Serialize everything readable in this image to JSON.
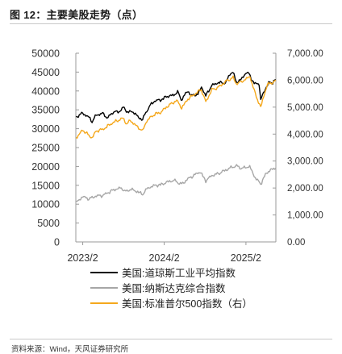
{
  "figure": {
    "title": "图 12：主要美股走势（点）",
    "source": "资料来源：Wind，天风证券研究所"
  },
  "chart_data": {
    "type": "line",
    "x_range": [
      "2023-01-01",
      "2025-06-15"
    ],
    "x_ticks": [
      {
        "date": "2023-02-01",
        "label": "2023/2"
      },
      {
        "date": "2024-02-01",
        "label": "2024/2"
      },
      {
        "date": "2025-02-01",
        "label": "2025/2"
      }
    ],
    "y_left": {
      "range": [
        0,
        50000
      ],
      "ticks": [
        0,
        5000,
        10000,
        15000,
        20000,
        25000,
        30000,
        35000,
        40000,
        45000,
        50000
      ],
      "tick_labels": [
        "0",
        "5000",
        "10000",
        "15000",
        "20000",
        "25000",
        "30000",
        "35000",
        "40000",
        "45000",
        "50000"
      ]
    },
    "y_right": {
      "range": [
        0,
        7000
      ],
      "ticks": [
        0,
        1000,
        2000,
        3000,
        4000,
        5000,
        6000,
        7000
      ],
      "tick_labels": [
        "0.00",
        "1,000.00",
        "2,000.00",
        "3,000.00",
        "4,000.00",
        "5,000.00",
        "6,000.00",
        "7,000.00"
      ]
    },
    "grid": false,
    "legend_position": "bottom",
    "series": [
      {
        "name": "美国:道琼斯工业平均指数",
        "axis": "left",
        "color": "#000000",
        "points": [
          [
            "2023-01-02",
            33150
          ],
          [
            "2023-02-01",
            34100
          ],
          [
            "2023-03-01",
            33000
          ],
          [
            "2023-03-15",
            31900
          ],
          [
            "2023-04-03",
            33600
          ],
          [
            "2023-05-01",
            34050
          ],
          [
            "2023-05-25",
            32800
          ],
          [
            "2023-06-15",
            34400
          ],
          [
            "2023-07-14",
            34500
          ],
          [
            "2023-08-01",
            35600
          ],
          [
            "2023-08-25",
            34300
          ],
          [
            "2023-09-15",
            34600
          ],
          [
            "2023-10-05",
            33100
          ],
          [
            "2023-10-27",
            32420
          ],
          [
            "2023-11-15",
            34800
          ],
          [
            "2023-12-01",
            36200
          ],
          [
            "2023-12-20",
            37400
          ],
          [
            "2024-01-15",
            37600
          ],
          [
            "2024-02-15",
            38600
          ],
          [
            "2024-03-15",
            38900
          ],
          [
            "2024-04-01",
            39800
          ],
          [
            "2024-04-17",
            37700
          ],
          [
            "2024-05-17",
            40000
          ],
          [
            "2024-06-03",
            38700
          ],
          [
            "2024-07-01",
            39200
          ],
          [
            "2024-07-17",
            41100
          ],
          [
            "2024-08-05",
            38700
          ],
          [
            "2024-09-01",
            41500
          ],
          [
            "2024-10-01",
            42200
          ],
          [
            "2024-11-01",
            42100
          ],
          [
            "2024-11-25",
            44800
          ],
          [
            "2024-12-04",
            45000
          ],
          [
            "2024-12-20",
            42300
          ],
          [
            "2025-01-15",
            43200
          ],
          [
            "2025-01-30",
            44900
          ],
          [
            "2025-02-15",
            44500
          ],
          [
            "2025-03-10",
            41900
          ],
          [
            "2025-04-01",
            42000
          ],
          [
            "2025-04-08",
            37600
          ],
          [
            "2025-04-25",
            40100
          ],
          [
            "2025-05-13",
            42100
          ],
          [
            "2025-06-01",
            42300
          ],
          [
            "2025-06-15",
            43000
          ]
        ]
      },
      {
        "name": "美国:纳斯达克综合指数",
        "axis": "left",
        "color": "#a6a6a6",
        "points": [
          [
            "2023-01-02",
            10400
          ],
          [
            "2023-02-01",
            12000
          ],
          [
            "2023-03-01",
            11400
          ],
          [
            "2023-04-03",
            12200
          ],
          [
            "2023-05-01",
            12300
          ],
          [
            "2023-06-15",
            13700
          ],
          [
            "2023-07-19",
            14300
          ],
          [
            "2023-08-18",
            13300
          ],
          [
            "2023-09-01",
            14000
          ],
          [
            "2023-10-05",
            13300
          ],
          [
            "2023-10-27",
            12600
          ],
          [
            "2023-11-15",
            14100
          ],
          [
            "2023-12-20",
            15000
          ],
          [
            "2024-01-15",
            15100
          ],
          [
            "2024-02-15",
            15900
          ],
          [
            "2024-03-15",
            16300
          ],
          [
            "2024-04-19",
            15280
          ],
          [
            "2024-05-17",
            16700
          ],
          [
            "2024-06-18",
            17800
          ],
          [
            "2024-07-10",
            18600
          ],
          [
            "2024-08-05",
            16200
          ],
          [
            "2024-09-01",
            17600
          ],
          [
            "2024-10-01",
            18100
          ],
          [
            "2024-11-11",
            19300
          ],
          [
            "2024-12-16",
            20170
          ],
          [
            "2025-01-15",
            19500
          ],
          [
            "2025-02-18",
            20000
          ],
          [
            "2025-03-10",
            17400
          ],
          [
            "2025-04-08",
            15300
          ],
          [
            "2025-04-25",
            17400
          ],
          [
            "2025-05-13",
            18800
          ],
          [
            "2025-06-15",
            19600
          ]
        ]
      },
      {
        "name": "美国:标准普尔500指数（右）",
        "axis": "right",
        "color": "#f5a81c",
        "points": [
          [
            "2023-01-02",
            3850
          ],
          [
            "2023-02-01",
            4150
          ],
          [
            "2023-03-01",
            3950
          ],
          [
            "2023-03-15",
            3860
          ],
          [
            "2023-04-03",
            4120
          ],
          [
            "2023-05-01",
            4170
          ],
          [
            "2023-06-15",
            4420
          ],
          [
            "2023-07-31",
            4590
          ],
          [
            "2023-08-18",
            4370
          ],
          [
            "2023-09-01",
            4510
          ],
          [
            "2023-10-05",
            4260
          ],
          [
            "2023-10-27",
            4120
          ],
          [
            "2023-11-15",
            4500
          ],
          [
            "2023-12-20",
            4740
          ],
          [
            "2024-01-15",
            4800
          ],
          [
            "2024-02-15",
            5030
          ],
          [
            "2024-03-28",
            5250
          ],
          [
            "2024-04-19",
            4970
          ],
          [
            "2024-05-17",
            5300
          ],
          [
            "2024-06-18",
            5490
          ],
          [
            "2024-07-16",
            5660
          ],
          [
            "2024-08-05",
            5190
          ],
          [
            "2024-09-01",
            5640
          ],
          [
            "2024-10-01",
            5740
          ],
          [
            "2024-11-11",
            6000
          ],
          [
            "2024-12-06",
            6090
          ],
          [
            "2024-12-20",
            5870
          ],
          [
            "2025-01-15",
            5950
          ],
          [
            "2025-02-19",
            6140
          ],
          [
            "2025-03-10",
            5610
          ],
          [
            "2025-04-08",
            4980
          ],
          [
            "2025-04-25",
            5520
          ],
          [
            "2025-05-13",
            5890
          ],
          [
            "2025-06-01",
            5900
          ],
          [
            "2025-06-15",
            6000
          ]
        ]
      }
    ]
  }
}
